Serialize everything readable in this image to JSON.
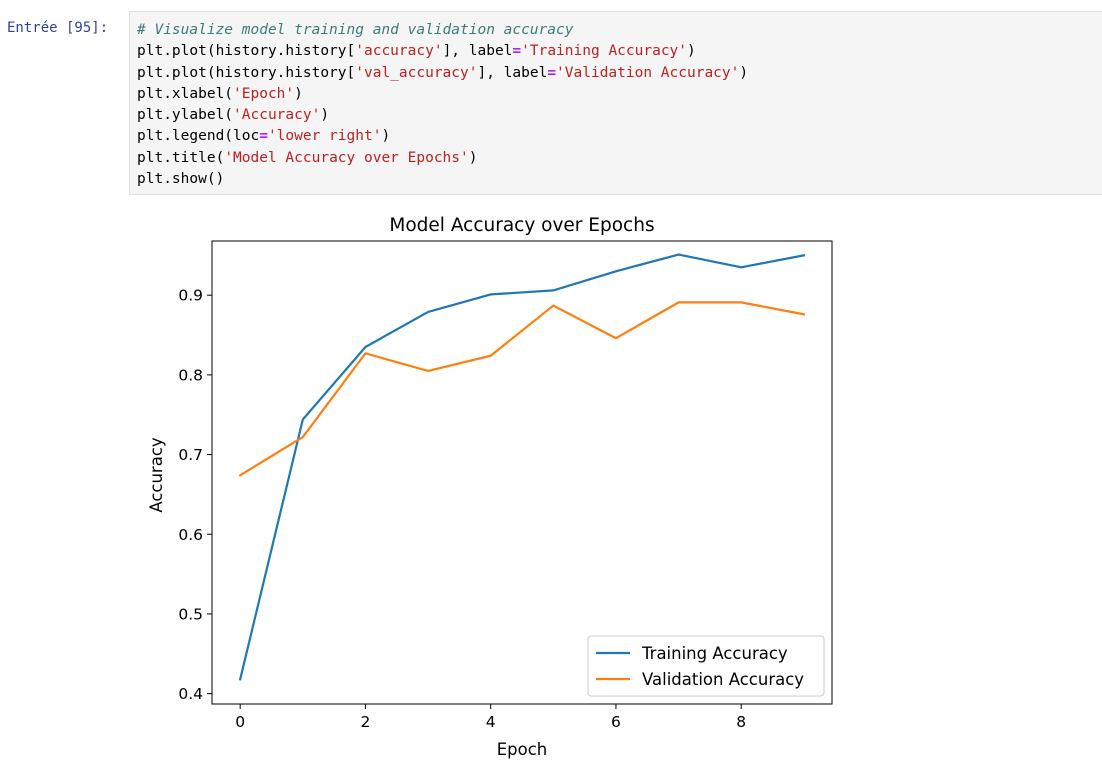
{
  "cell": {
    "prompt": "Entrée [95]:",
    "code_lines": [
      [
        {
          "t": "comment",
          "s": "# Visualize model training and validation accuracy"
        }
      ],
      [
        {
          "t": "plain",
          "s": "plt.plot(history.history["
        },
        {
          "t": "string",
          "s": "'accuracy'"
        },
        {
          "t": "plain",
          "s": "], label"
        },
        {
          "t": "op",
          "s": "="
        },
        {
          "t": "string",
          "s": "'Training Accuracy'"
        },
        {
          "t": "plain",
          "s": ")"
        }
      ],
      [
        {
          "t": "plain",
          "s": "plt.plot(history.history["
        },
        {
          "t": "string",
          "s": "'val_accuracy'"
        },
        {
          "t": "plain",
          "s": "], label"
        },
        {
          "t": "op",
          "s": "="
        },
        {
          "t": "string",
          "s": "'Validation Accuracy'"
        },
        {
          "t": "plain",
          "s": ")"
        }
      ],
      [
        {
          "t": "plain",
          "s": "plt.xlabel("
        },
        {
          "t": "string",
          "s": "'Epoch'"
        },
        {
          "t": "plain",
          "s": ")"
        }
      ],
      [
        {
          "t": "plain",
          "s": "plt.ylabel("
        },
        {
          "t": "string",
          "s": "'Accuracy'"
        },
        {
          "t": "plain",
          "s": ")"
        }
      ],
      [
        {
          "t": "plain",
          "s": "plt.legend(loc"
        },
        {
          "t": "op",
          "s": "="
        },
        {
          "t": "string",
          "s": "'lower right'"
        },
        {
          "t": "plain",
          "s": ")"
        }
      ],
      [
        {
          "t": "plain",
          "s": "plt.title("
        },
        {
          "t": "string",
          "s": "'Model Accuracy over Epochs'"
        },
        {
          "t": "plain",
          "s": ")"
        }
      ],
      [
        {
          "t": "plain",
          "s": "plt.show()"
        }
      ]
    ]
  },
  "chart_data": {
    "type": "line",
    "title": "Model Accuracy over Epochs",
    "xlabel": "Epoch",
    "ylabel": "Accuracy",
    "x": [
      0,
      1,
      2,
      3,
      4,
      5,
      6,
      7,
      8,
      9
    ],
    "xlim": [
      -0.45,
      9.45
    ],
    "ylim": [
      0.387,
      0.968
    ],
    "xticks": [
      0,
      2,
      4,
      6,
      8
    ],
    "yticks": [
      0.4,
      0.5,
      0.6,
      0.7,
      0.8,
      0.9
    ],
    "grid": false,
    "legend_position": "lower right",
    "series": [
      {
        "name": "Training Accuracy",
        "color": "#1f77b4",
        "values": [
          0.418,
          0.744,
          0.835,
          0.879,
          0.901,
          0.906,
          0.93,
          0.951,
          0.935,
          0.95
        ]
      },
      {
        "name": "Validation Accuracy",
        "color": "#ff7f0e",
        "values": [
          0.674,
          0.722,
          0.827,
          0.805,
          0.824,
          0.887,
          0.846,
          0.891,
          0.891,
          0.876
        ]
      }
    ]
  }
}
